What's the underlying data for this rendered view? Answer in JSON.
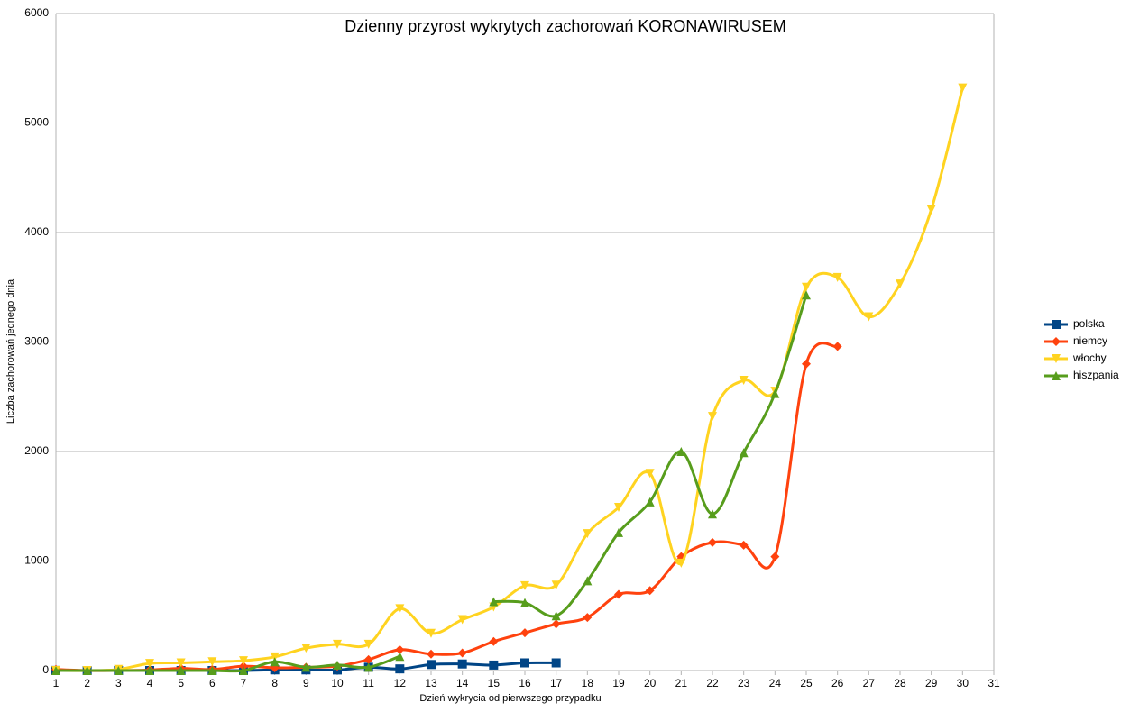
{
  "chart_data": {
    "type": "line",
    "title": "Dzienny przyrost wykrytych zachorowań KORONAWIRUSEM",
    "x_label": "Dzień wykrycia od pierwszego przypadku",
    "y_label": "Liczba zachorowań jednego dnia",
    "x": [
      1,
      2,
      3,
      4,
      5,
      6,
      7,
      8,
      9,
      10,
      11,
      12,
      13,
      14,
      15,
      16,
      17,
      18,
      19,
      20,
      21,
      22,
      23,
      24,
      25,
      26,
      27,
      28,
      29,
      30
    ],
    "xlim": [
      1,
      31
    ],
    "xticks": [
      1,
      2,
      3,
      4,
      5,
      6,
      7,
      8,
      9,
      10,
      11,
      12,
      13,
      14,
      15,
      16,
      17,
      18,
      19,
      20,
      21,
      22,
      23,
      24,
      25,
      26,
      27,
      28,
      29,
      30,
      31
    ],
    "ylim": [
      0,
      6000
    ],
    "yticks": [
      0,
      1000,
      2000,
      3000,
      4000,
      5000,
      6000
    ],
    "grid": true,
    "smooth": true,
    "legend": "right",
    "series": [
      {
        "name": "polska",
        "color": "#004586",
        "marker": "square",
        "values": [
          1,
          0,
          0,
          0,
          0,
          0,
          0,
          6,
          6,
          5,
          30,
          15,
          55,
          60,
          50,
          70,
          70,
          null,
          null,
          null,
          null,
          null,
          null,
          null,
          null,
          null,
          null,
          null,
          null,
          null
        ]
      },
      {
        "name": "niemcy",
        "color": "#ff420e",
        "marker": "diamond",
        "values": [
          10,
          0,
          0,
          5,
          20,
          10,
          40,
          25,
          30,
          40,
          100,
          190,
          150,
          160,
          265,
          345,
          425,
          485,
          695,
          730,
          1040,
          1170,
          1145,
          1040,
          2800,
          2960,
          null,
          null,
          null,
          null
        ]
      },
      {
        "name": "włochy",
        "color": "#ffd320",
        "marker": "down",
        "values": [
          0,
          0,
          10,
          65,
          70,
          80,
          90,
          125,
          205,
          240,
          240,
          565,
          340,
          465,
          580,
          775,
          780,
          1250,
          1490,
          1800,
          980,
          2320,
          2650,
          2550,
          3500,
          3590,
          3230,
          3530,
          4210,
          5320
        ]
      },
      {
        "name": "hiszpania",
        "color": "#579d1c",
        "marker": "up",
        "values": [
          0,
          0,
          0,
          0,
          0,
          0,
          0,
          80,
          30,
          50,
          30,
          130,
          null,
          null,
          630,
          620,
          500,
          820,
          1260,
          1540,
          2000,
          1430,
          1990,
          2530,
          3430,
          null,
          null,
          null,
          null,
          null
        ]
      }
    ]
  }
}
